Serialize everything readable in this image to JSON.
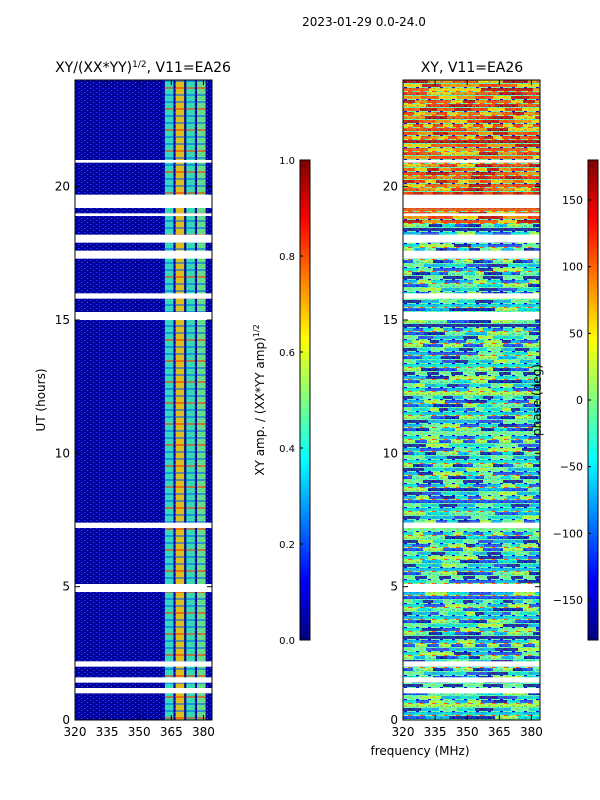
{
  "figure": {
    "suptitle": "2023-01-29 0.0-24.0"
  },
  "chart_data": [
    {
      "type": "heatmap",
      "title": "XY/(XX*YY)$^{1/2}$, V11=EA26",
      "title_main": "XY/(XX*YY)",
      "title_sup": "1/2",
      "title_tail": ", V11=EA26",
      "xlabel": "",
      "ylabel": "UT (hours)",
      "xlim": [
        320,
        384
      ],
      "ylim": [
        0,
        24
      ],
      "xticks": [
        320,
        335,
        350,
        365,
        380
      ],
      "yticks": [
        0,
        5,
        10,
        15,
        20
      ],
      "colorbar": {
        "label_main": "XY amp. / (XX*YY amp)",
        "label_sup": "1/2",
        "range": [
          0.0,
          1.0
        ],
        "ticks": [
          "0.0",
          "0.2",
          "0.4",
          "0.6",
          "0.8",
          "1.0"
        ],
        "colormap": "jet"
      },
      "flagged_gaps_hours": [
        [
          1.0,
          1.2
        ],
        [
          1.4,
          1.6
        ],
        [
          2.0,
          2.2
        ],
        [
          4.8,
          5.1
        ],
        [
          7.2,
          7.4
        ],
        [
          15.0,
          15.3
        ],
        [
          15.8,
          16.0
        ],
        [
          17.3,
          17.6
        ],
        [
          17.9,
          18.2
        ],
        [
          18.9,
          19.0
        ],
        [
          19.2,
          19.7
        ],
        [
          20.9,
          21.0
        ]
      ],
      "bright_channel_bands_mhz": [
        [
          362,
          366
        ],
        [
          367,
          371
        ],
        [
          372,
          376
        ],
        [
          377,
          381
        ]
      ]
    },
    {
      "type": "heatmap",
      "title": "XY, V11=EA26",
      "xlabel": "frequency (MHz)",
      "ylabel": "",
      "xlim": [
        320,
        384
      ],
      "ylim": [
        0,
        24
      ],
      "xticks": [
        320,
        335,
        350,
        365,
        380
      ],
      "yticks": [
        0,
        5,
        10,
        15,
        20
      ],
      "colorbar": {
        "label": "phase (deg)",
        "range": [
          -180,
          180
        ],
        "ticks": [
          "−150",
          "−100",
          "−50",
          "0",
          "50",
          "100",
          "150"
        ],
        "colormap": "jet"
      },
      "flagged_gaps_hours": [
        [
          1.0,
          1.2
        ],
        [
          1.4,
          1.6
        ],
        [
          2.0,
          2.2
        ],
        [
          4.8,
          5.1
        ],
        [
          7.2,
          7.4
        ],
        [
          15.0,
          15.3
        ],
        [
          15.8,
          16.0
        ],
        [
          17.3,
          17.6
        ],
        [
          17.9,
          18.2
        ],
        [
          18.9,
          19.0
        ],
        [
          19.2,
          19.7
        ],
        [
          20.9,
          21.0
        ]
      ]
    }
  ]
}
